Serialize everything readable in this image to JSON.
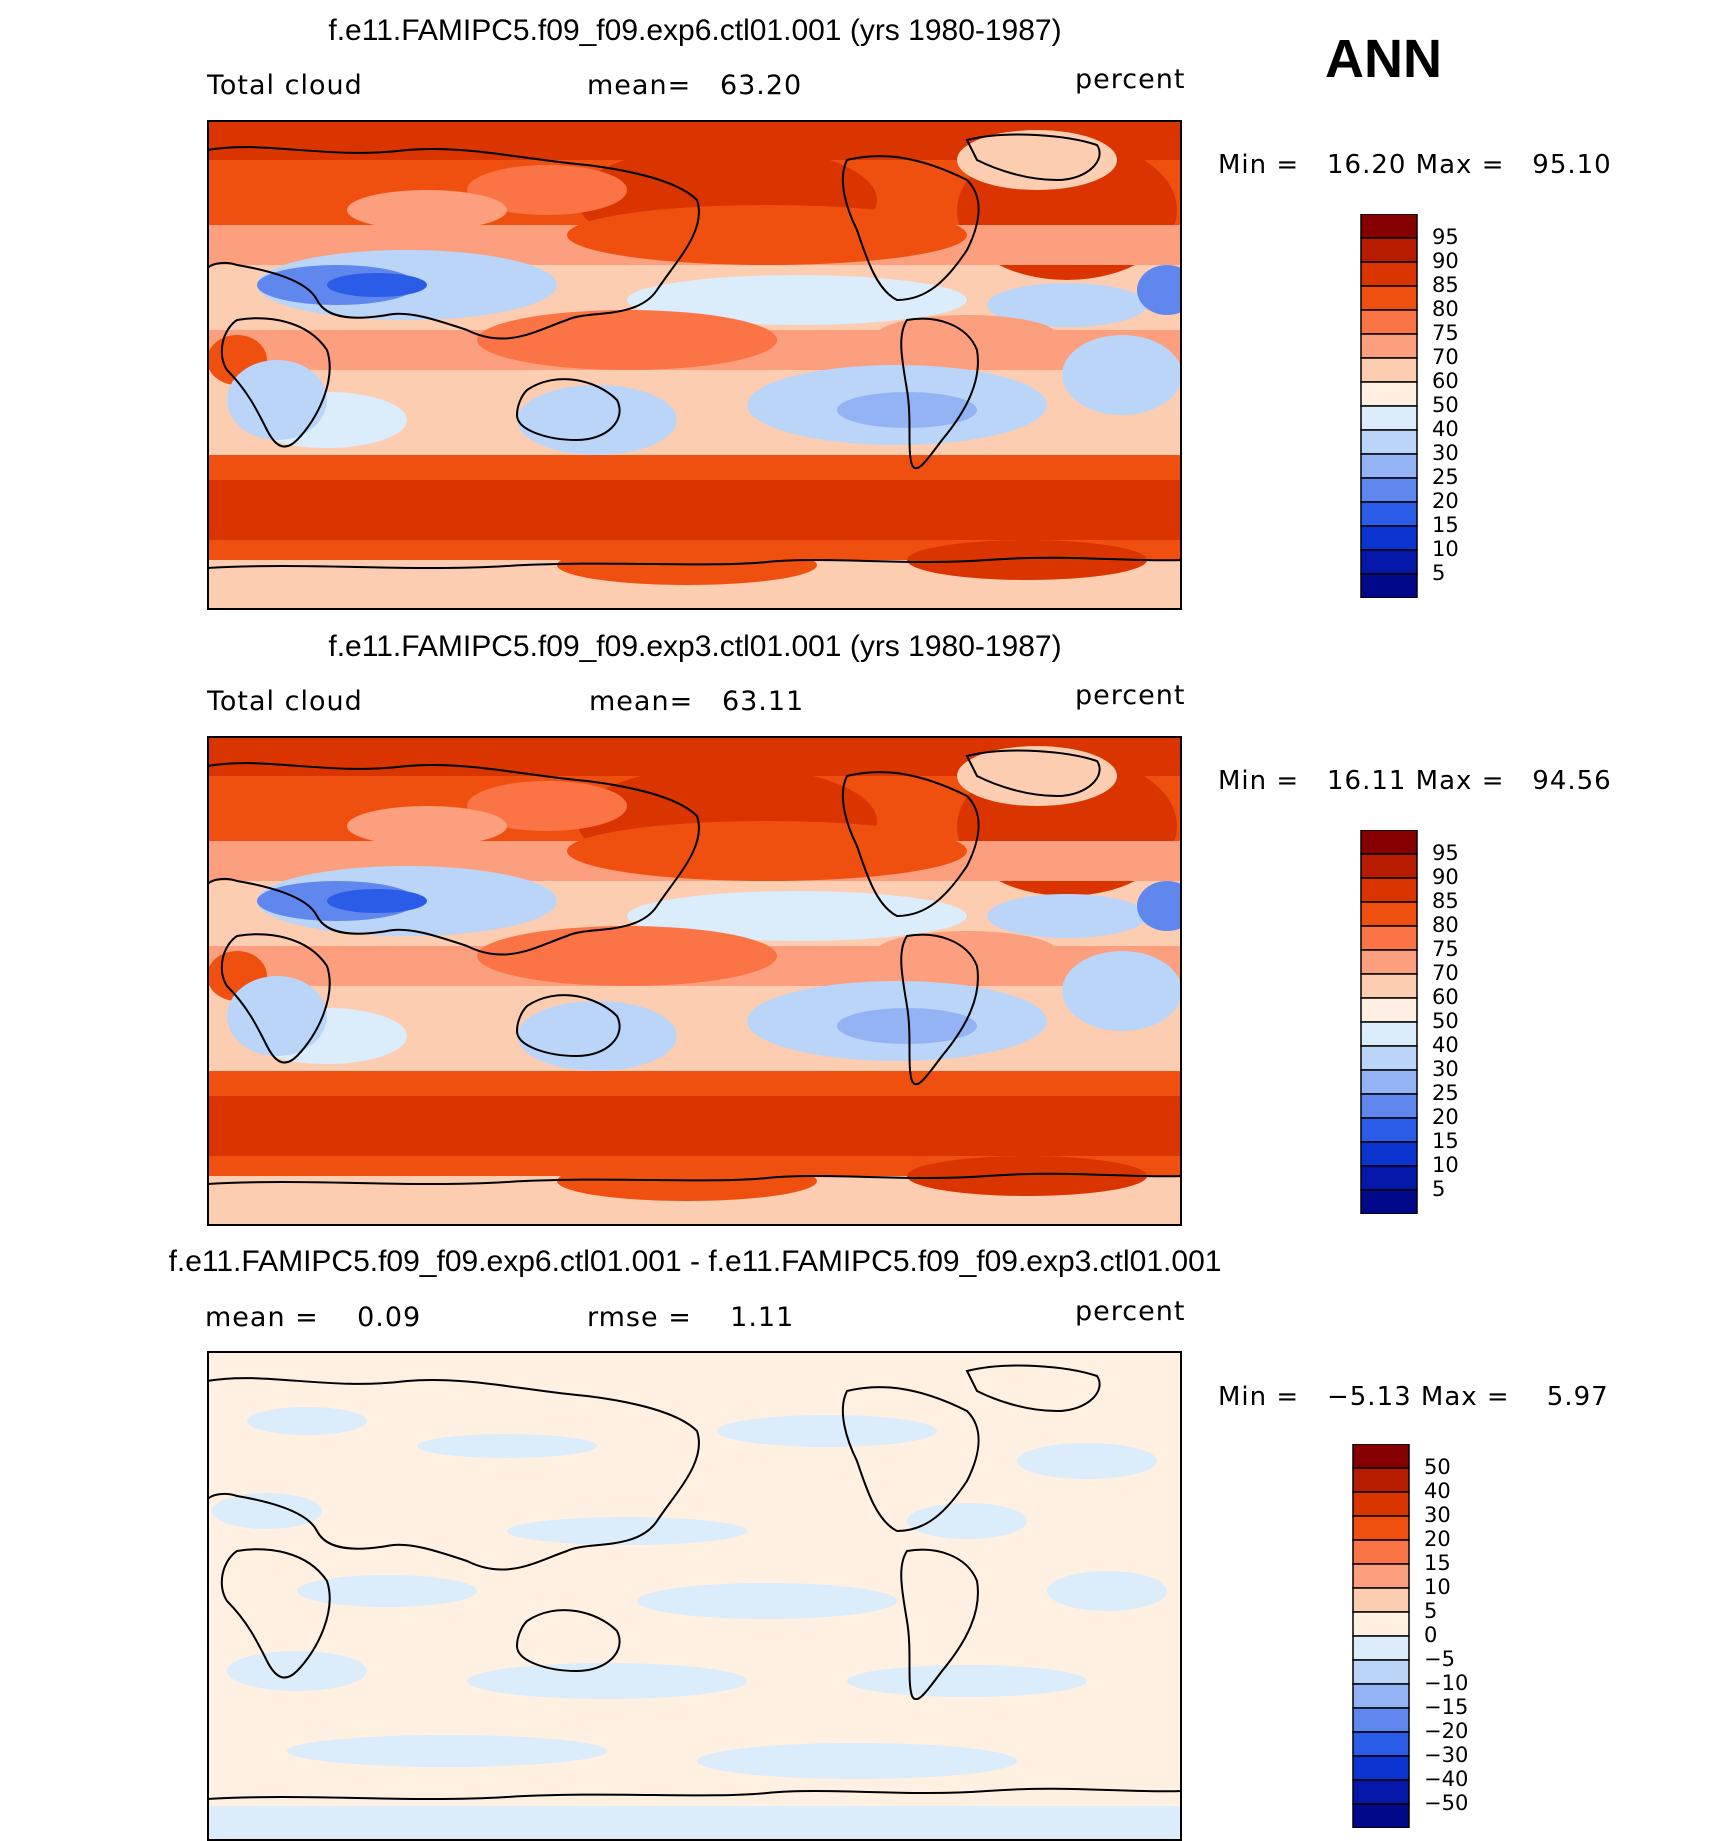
{
  "header": {
    "season": "ANN"
  },
  "panels": [
    {
      "title": "f.e11.FAMIPC5.f09_f09.exp6.ctl01.001 (yrs 1980-1987)",
      "left_label": "Total cloud",
      "center_label": "mean=   63.20",
      "units": "percent",
      "range_text": "Min =   16.20 Max =   95.10"
    },
    {
      "title": "f.e11.FAMIPC5.f09_f09.exp3.ctl01.001 (yrs 1980-1987)",
      "left_label": "Total cloud",
      "center_label": "mean=   63.11",
      "units": "percent",
      "range_text": "Min =   16.11 Max =   94.56"
    },
    {
      "title": "f.e11.FAMIPC5.f09_f09.exp6.ctl01.001 - f.e11.FAMIPC5.f09_f09.exp3.ctl01.001",
      "left_label": "mean =    0.09",
      "center_label": "rmse =    1.11",
      "units": "percent",
      "range_text": "Min =   −5.13 Max =    5.97"
    }
  ],
  "colorbars": {
    "field": {
      "labels": [
        "95",
        "90",
        "85",
        "80",
        "75",
        "70",
        "60",
        "50",
        "40",
        "30",
        "25",
        "20",
        "15",
        "10",
        "5"
      ],
      "colors": [
        "#870000",
        "#b71c00",
        "#da3500",
        "#f0500f",
        "#fa7446",
        "#fc9f7f",
        "#fdcdb1",
        "#fff0e2",
        "#dbecfb",
        "#bbd5f9",
        "#93b3f5",
        "#5f87ee",
        "#2b5ce8",
        "#0b34d0",
        "#0517a8",
        "#01088a"
      ]
    },
    "diff": {
      "labels": [
        "50",
        "40",
        "30",
        "20",
        "15",
        "10",
        "5",
        "0",
        "−5",
        "−10",
        "−15",
        "−20",
        "−30",
        "−40",
        "−50"
      ],
      "colors": [
        "#870000",
        "#b71c00",
        "#da3500",
        "#f0500f",
        "#fa7446",
        "#fc9f7f",
        "#fdcdb1",
        "#fff0e2",
        "#dbecfb",
        "#bbd5f9",
        "#93b3f5",
        "#5f87ee",
        "#2b5ce8",
        "#0b34d0",
        "#0517a8",
        "#01088a"
      ]
    }
  }
}
